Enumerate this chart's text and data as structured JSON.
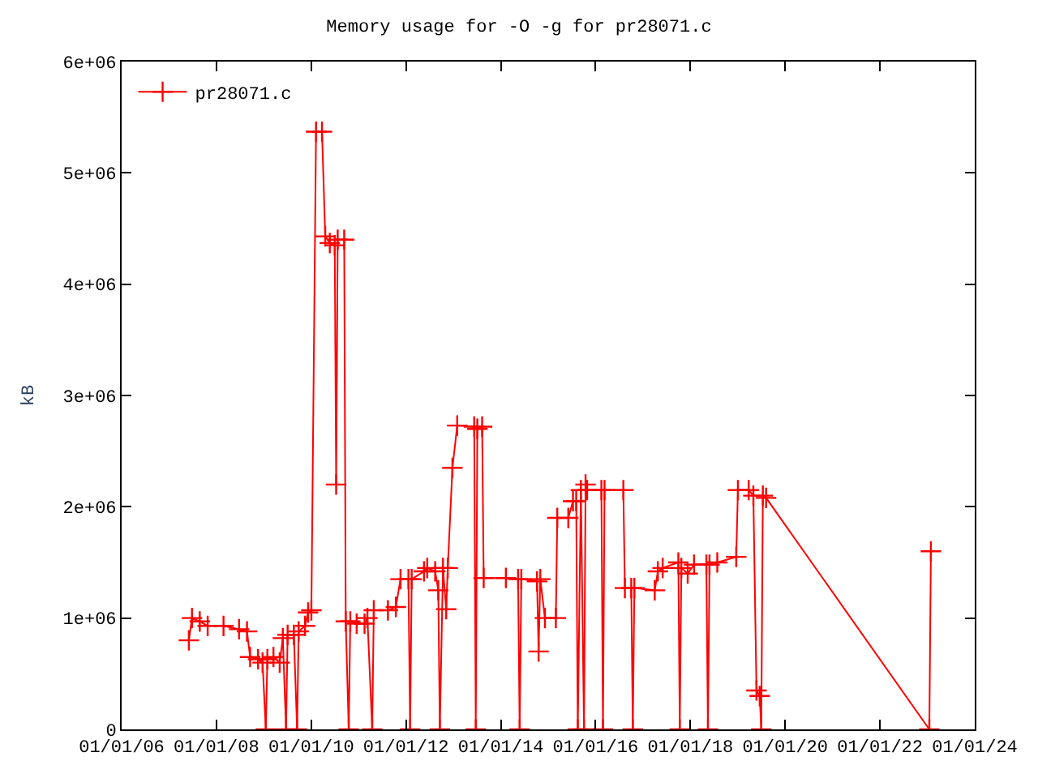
{
  "chart_data": {
    "type": "line",
    "title": "Memory usage for -O -g for pr28071.c",
    "ylabel": "kB",
    "xlim": [
      "2006-01-01",
      "2024-01-01"
    ],
    "xticks": [
      {
        "value": "2006-01-01",
        "label": "01/01/06"
      },
      {
        "value": "2008-01-01",
        "label": "01/01/08"
      },
      {
        "value": "2010-01-01",
        "label": "01/01/10"
      },
      {
        "value": "2012-01-01",
        "label": "01/01/12"
      },
      {
        "value": "2014-01-01",
        "label": "01/01/14"
      },
      {
        "value": "2016-01-01",
        "label": "01/01/16"
      },
      {
        "value": "2018-01-01",
        "label": "01/01/18"
      },
      {
        "value": "2020-01-01",
        "label": "01/01/20"
      },
      {
        "value": "2022-01-01",
        "label": "01/01/22"
      },
      {
        "value": "2024-01-01",
        "label": "01/01/24"
      }
    ],
    "ylim": [
      0,
      6000000
    ],
    "yticks": [
      0,
      {
        "value": 1000000,
        "label": "1e+06"
      },
      {
        "value": 2000000,
        "label": "2e+06"
      },
      {
        "value": 3000000,
        "label": "3e+06"
      },
      {
        "value": 4000000,
        "label": "4e+06"
      },
      {
        "value": 5000000,
        "label": "5e+06"
      },
      {
        "value": 6000000,
        "label": "6e+06"
      }
    ],
    "legend": "top left",
    "marker": "cross",
    "line_style": "solid",
    "series": [
      {
        "name": "pr28071.c",
        "color": "#ff0000",
        "x": [
          "2007-06-03",
          "2007-06-27",
          "2007-08-26",
          "2007-10-26",
          "2008-02-25",
          "2008-06-24",
          "2008-08-24",
          "2008-09-17",
          "2008-11-17",
          "2008-12-22",
          "2009-01-16",
          "2009-01-28",
          "2009-03-16",
          "2009-05-03",
          "2009-05-27",
          "2009-06-21",
          "2009-07-03",
          "2009-08-20",
          "2009-09-14",
          "2009-09-26",
          "2009-11-14",
          "2009-12-08",
          "2010-01-02",
          "2010-02-07",
          "2010-03-25",
          "2010-04-19",
          "2010-05-24",
          "2010-07-01",
          "2010-07-12",
          "2010-07-24",
          "2010-09-12",
          "2010-09-24",
          "2010-10-17",
          "2010-10-29",
          "2010-12-17",
          "2011-02-16",
          "2011-03-10",
          "2011-04-16",
          "2011-04-28",
          "2011-08-15",
          "2011-10-15",
          "2011-11-20",
          "2012-01-20",
          "2012-02-02",
          "2012-02-14",
          "2012-05-19",
          "2012-06-13",
          "2012-08-13",
          "2012-09-06",
          "2012-09-18",
          "2012-10-12",
          "2012-11-06",
          "2012-11-18",
          "2012-12-24",
          "2013-01-30",
          "2013-06-10",
          "2013-06-22",
          "2013-07-04",
          "2013-08-10",
          "2013-08-22",
          "2014-02-09",
          "2014-05-14",
          "2014-05-26",
          "2014-06-08",
          "2014-10-07",
          "2014-10-19",
          "2014-11-01",
          "2014-12-07",
          "2015-03-01",
          "2015-03-12",
          "2015-06-05",
          "2015-07-11",
          "2015-08-05",
          "2015-08-17",
          "2015-09-10",
          "2015-10-04",
          "2015-10-16",
          "2015-10-28",
          "2016-02-15",
          "2016-02-27",
          "2016-03-10",
          "2016-08-02",
          "2016-08-14",
          "2016-10-02",
          "2016-10-14",
          "2016-10-26",
          "2017-04-01",
          "2017-04-25",
          "2017-06-01",
          "2017-09-30",
          "2017-10-11",
          "2017-10-23",
          "2017-12-11",
          "2018-01-29",
          "2018-05-04",
          "2018-05-16",
          "2018-05-28",
          "2018-07-27",
          "2018-12-20",
          "2019-01-02",
          "2019-03-26",
          "2019-05-01",
          "2019-05-25",
          "2019-06-19",
          "2019-07-01",
          "2019-07-13",
          "2019-08-07",
          "2023-01-16",
          "2023-01-28"
        ],
        "values": [
          800000,
          1000000,
          970000,
          930000,
          930000,
          900000,
          880000,
          650000,
          630000,
          600000,
          0,
          630000,
          650000,
          600000,
          820000,
          0,
          850000,
          850000,
          0,
          880000,
          930000,
          1050000,
          1070000,
          5370000,
          5370000,
          4430000,
          4370000,
          4350000,
          2200000,
          4400000,
          4400000,
          970000,
          0,
          970000,
          950000,
          950000,
          1000000,
          0,
          1070000,
          1070000,
          1100000,
          1350000,
          1350000,
          0,
          1350000,
          1420000,
          1450000,
          1420000,
          1250000,
          0,
          1450000,
          1080000,
          1450000,
          2350000,
          2730000,
          2720000,
          0,
          2700000,
          2720000,
          1360000,
          1360000,
          1350000,
          0,
          1350000,
          1330000,
          700000,
          1350000,
          1000000,
          1000000,
          1900000,
          1900000,
          2050000,
          2050000,
          0,
          2150000,
          0,
          2200000,
          2150000,
          2150000,
          0,
          2150000,
          2150000,
          1270000,
          1270000,
          0,
          1270000,
          1250000,
          1420000,
          1450000,
          1500000,
          0,
          1450000,
          1400000,
          1480000,
          1480000,
          0,
          1480000,
          1500000,
          1550000,
          2150000,
          2150000,
          2100000,
          350000,
          300000,
          0,
          2100000,
          2080000,
          0,
          1600000
        ]
      }
    ]
  }
}
